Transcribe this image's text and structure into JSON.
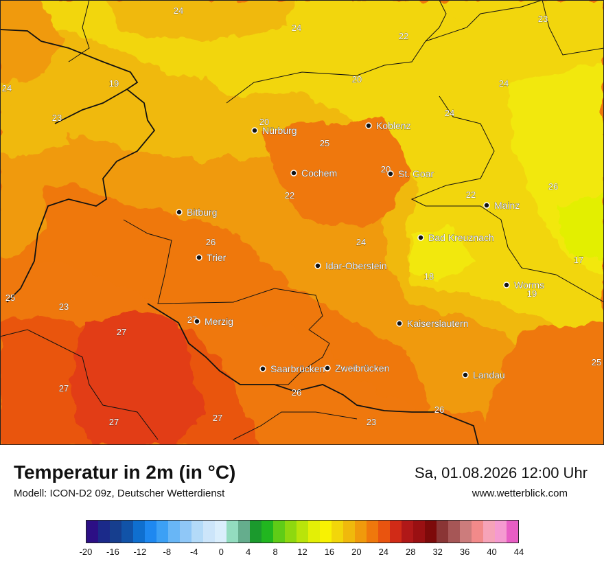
{
  "header": {
    "title": "Temperatur in 2m (in °C)",
    "model": "Modell: ICON-D2 09z, Deutscher Wetterdienst",
    "datetime": "Sa, 01.08.2026 12:00 Uhr",
    "website": "www.wetterblick.com"
  },
  "cities": [
    {
      "name": "Nürburg"
    },
    {
      "name": "Koblenz"
    },
    {
      "name": "Cochem"
    },
    {
      "name": "St. Goar"
    },
    {
      "name": "Mainz"
    },
    {
      "name": "Bitburg"
    },
    {
      "name": "Bad Kreuznach"
    },
    {
      "name": "Trier"
    },
    {
      "name": "Idar-Oberstein"
    },
    {
      "name": "Worms"
    },
    {
      "name": "Merzig"
    },
    {
      "name": "Kaiserslautern"
    },
    {
      "name": "Saarbrücken"
    },
    {
      "name": "Zweibrücken"
    },
    {
      "name": "Landau"
    }
  ],
  "temperature_labels": [
    "24",
    "24",
    "22",
    "23",
    "24",
    "19",
    "20",
    "24",
    "23",
    "20",
    "24",
    "25",
    "20",
    "26",
    "22",
    "22",
    "26",
    "24",
    "18",
    "17",
    "25",
    "19",
    "23",
    "27",
    "27",
    "25",
    "27",
    "26",
    "26",
    "27",
    "23",
    "27"
  ],
  "legend": {
    "colors": [
      "#2c0f85",
      "#1b2a8a",
      "#163e8e",
      "#1153a8",
      "#0f6fcf",
      "#1e88f0",
      "#3ca0f5",
      "#68b6f6",
      "#8fc7f7",
      "#b3daf8",
      "#cce5fa",
      "#daeefc",
      "#93dcbf",
      "#65ad8d",
      "#1b9a2d",
      "#21b61f",
      "#5fcc17",
      "#8ed80f",
      "#b9e40a",
      "#e3ef06",
      "#f8f202",
      "#f2d60a",
      "#f0b90c",
      "#f09a0c",
      "#ef780c",
      "#e9540f",
      "#d12b17",
      "#b01818",
      "#9a1012",
      "#7d0a0a",
      "#8a3535",
      "#a65656",
      "#cc7c7c",
      "#f28a8a",
      "#f6a3b8",
      "#f59ad0",
      "#e85ec4"
    ],
    "ticks": [
      "-20",
      "-16",
      "-12",
      "-8",
      "-4",
      "0",
      "4",
      "8",
      "12",
      "16",
      "20",
      "24",
      "28",
      "32",
      "36",
      "40",
      "44"
    ]
  }
}
